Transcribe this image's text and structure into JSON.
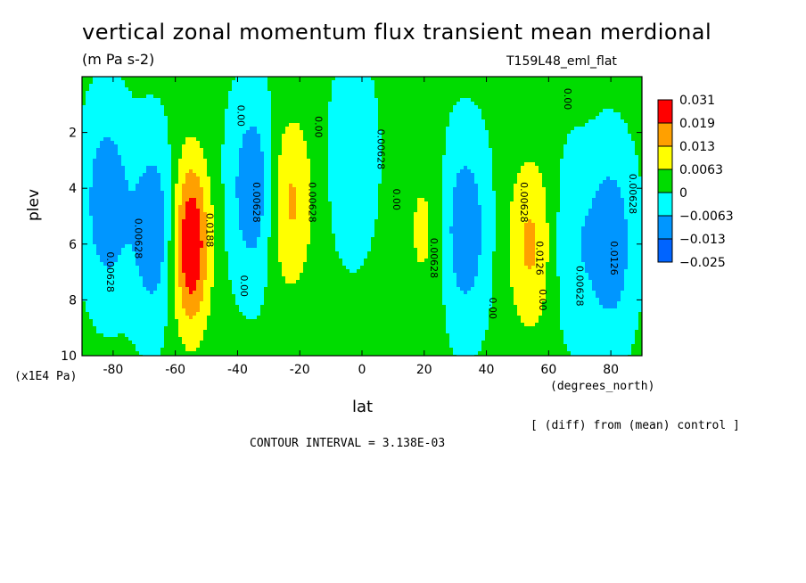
{
  "chart_data": {
    "type": "heatmap",
    "title": "vertical zonal momentum flux transient mean merdional",
    "units": "(m Pa s-2)",
    "run_label": "T159L48_eml_flat",
    "xlabel": "lat",
    "x_units": "(degrees_north)",
    "ylabel": "plev",
    "y_units": "(x1E4 Pa)",
    "footnote": "[ (diff) from (mean) control ]",
    "contour_interval": "CONTOUR INTERVAL = 3.138E-03",
    "xlim": [
      -90,
      90
    ],
    "ylim": [
      10,
      0
    ],
    "x_ticks": [
      -80,
      -60,
      -40,
      -20,
      0,
      20,
      40,
      60,
      80
    ],
    "y_ticks": [
      2,
      4,
      6,
      8,
      10
    ],
    "x_tick_labels": [
      "-80",
      "-60",
      "-40",
      "-20",
      "0",
      "20",
      "40",
      "60",
      "80"
    ],
    "y_tick_labels": [
      "2",
      "4",
      "6",
      "8",
      "10"
    ],
    "colorbar": {
      "labels": [
        "0.031",
        "0.019",
        "0.013",
        "0.0063",
        "0",
        "−0.0063",
        "−0.013",
        "−0.025"
      ],
      "colors": [
        "#ff0000",
        "#ffa000",
        "#ffff00",
        "#00dc00",
        "#00ffff",
        "#0096ff",
        "#0064ff"
      ]
    },
    "features": [
      {
        "lat": -82,
        "plev": 4.5,
        "value": -0.013
      },
      {
        "lat": -67,
        "plev": 5.5,
        "value": -0.013
      },
      {
        "lat": -55,
        "plev": 6.0,
        "value": 0.025
      },
      {
        "lat": -35,
        "plev": 4.0,
        "value": -0.013
      },
      {
        "lat": -23,
        "plev": 4.5,
        "value": 0.013
      },
      {
        "lat": -3,
        "plev": 3.0,
        "value": -0.0063
      },
      {
        "lat": 20,
        "plev": 5.5,
        "value": 0.0063
      },
      {
        "lat": 33,
        "plev": 5.5,
        "value": -0.013
      },
      {
        "lat": 54,
        "plev": 6.0,
        "value": 0.013
      },
      {
        "lat": 68,
        "plev": 6.0,
        "value": -0.0063
      },
      {
        "lat": 80,
        "plev": 6.0,
        "value": -0.013
      }
    ],
    "contour_labels": [
      {
        "text": "0.00628",
        "lat": -82,
        "plev": 7.0
      },
      {
        "text": "0.00628",
        "lat": -73,
        "plev": 5.8
      },
      {
        "text": "0.0188",
        "lat": -50,
        "plev": 5.5
      },
      {
        "text": "0.00628",
        "lat": -35,
        "plev": 4.5
      },
      {
        "text": "0.00",
        "lat": -39,
        "plev": 7.5
      },
      {
        "text": "0.00",
        "lat": -40,
        "plev": 1.4
      },
      {
        "text": "0.00628",
        "lat": -17,
        "plev": 4.5
      },
      {
        "text": "0.00",
        "lat": -15,
        "plev": 1.8
      },
      {
        "text": "0.00628",
        "lat": 5,
        "plev": 2.6
      },
      {
        "text": "0.00",
        "lat": 10,
        "plev": 4.4
      },
      {
        "text": "0.00628",
        "lat": 22,
        "plev": 6.5
      },
      {
        "text": "0.00",
        "lat": 41,
        "plev": 8.3
      },
      {
        "text": "0.00628",
        "lat": 51,
        "plev": 4.5
      },
      {
        "text": "0.0126",
        "lat": 56,
        "plev": 6.5
      },
      {
        "text": "0.00",
        "lat": 57,
        "plev": 8.0
      },
      {
        "text": "0.00628",
        "lat": 69,
        "plev": 7.5
      },
      {
        "text": "0.0126",
        "lat": 80,
        "plev": 6.5
      },
      {
        "text": "0.00628",
        "lat": 86,
        "plev": 4.2
      },
      {
        "text": "0.00",
        "lat": 65,
        "plev": 0.8
      }
    ]
  }
}
